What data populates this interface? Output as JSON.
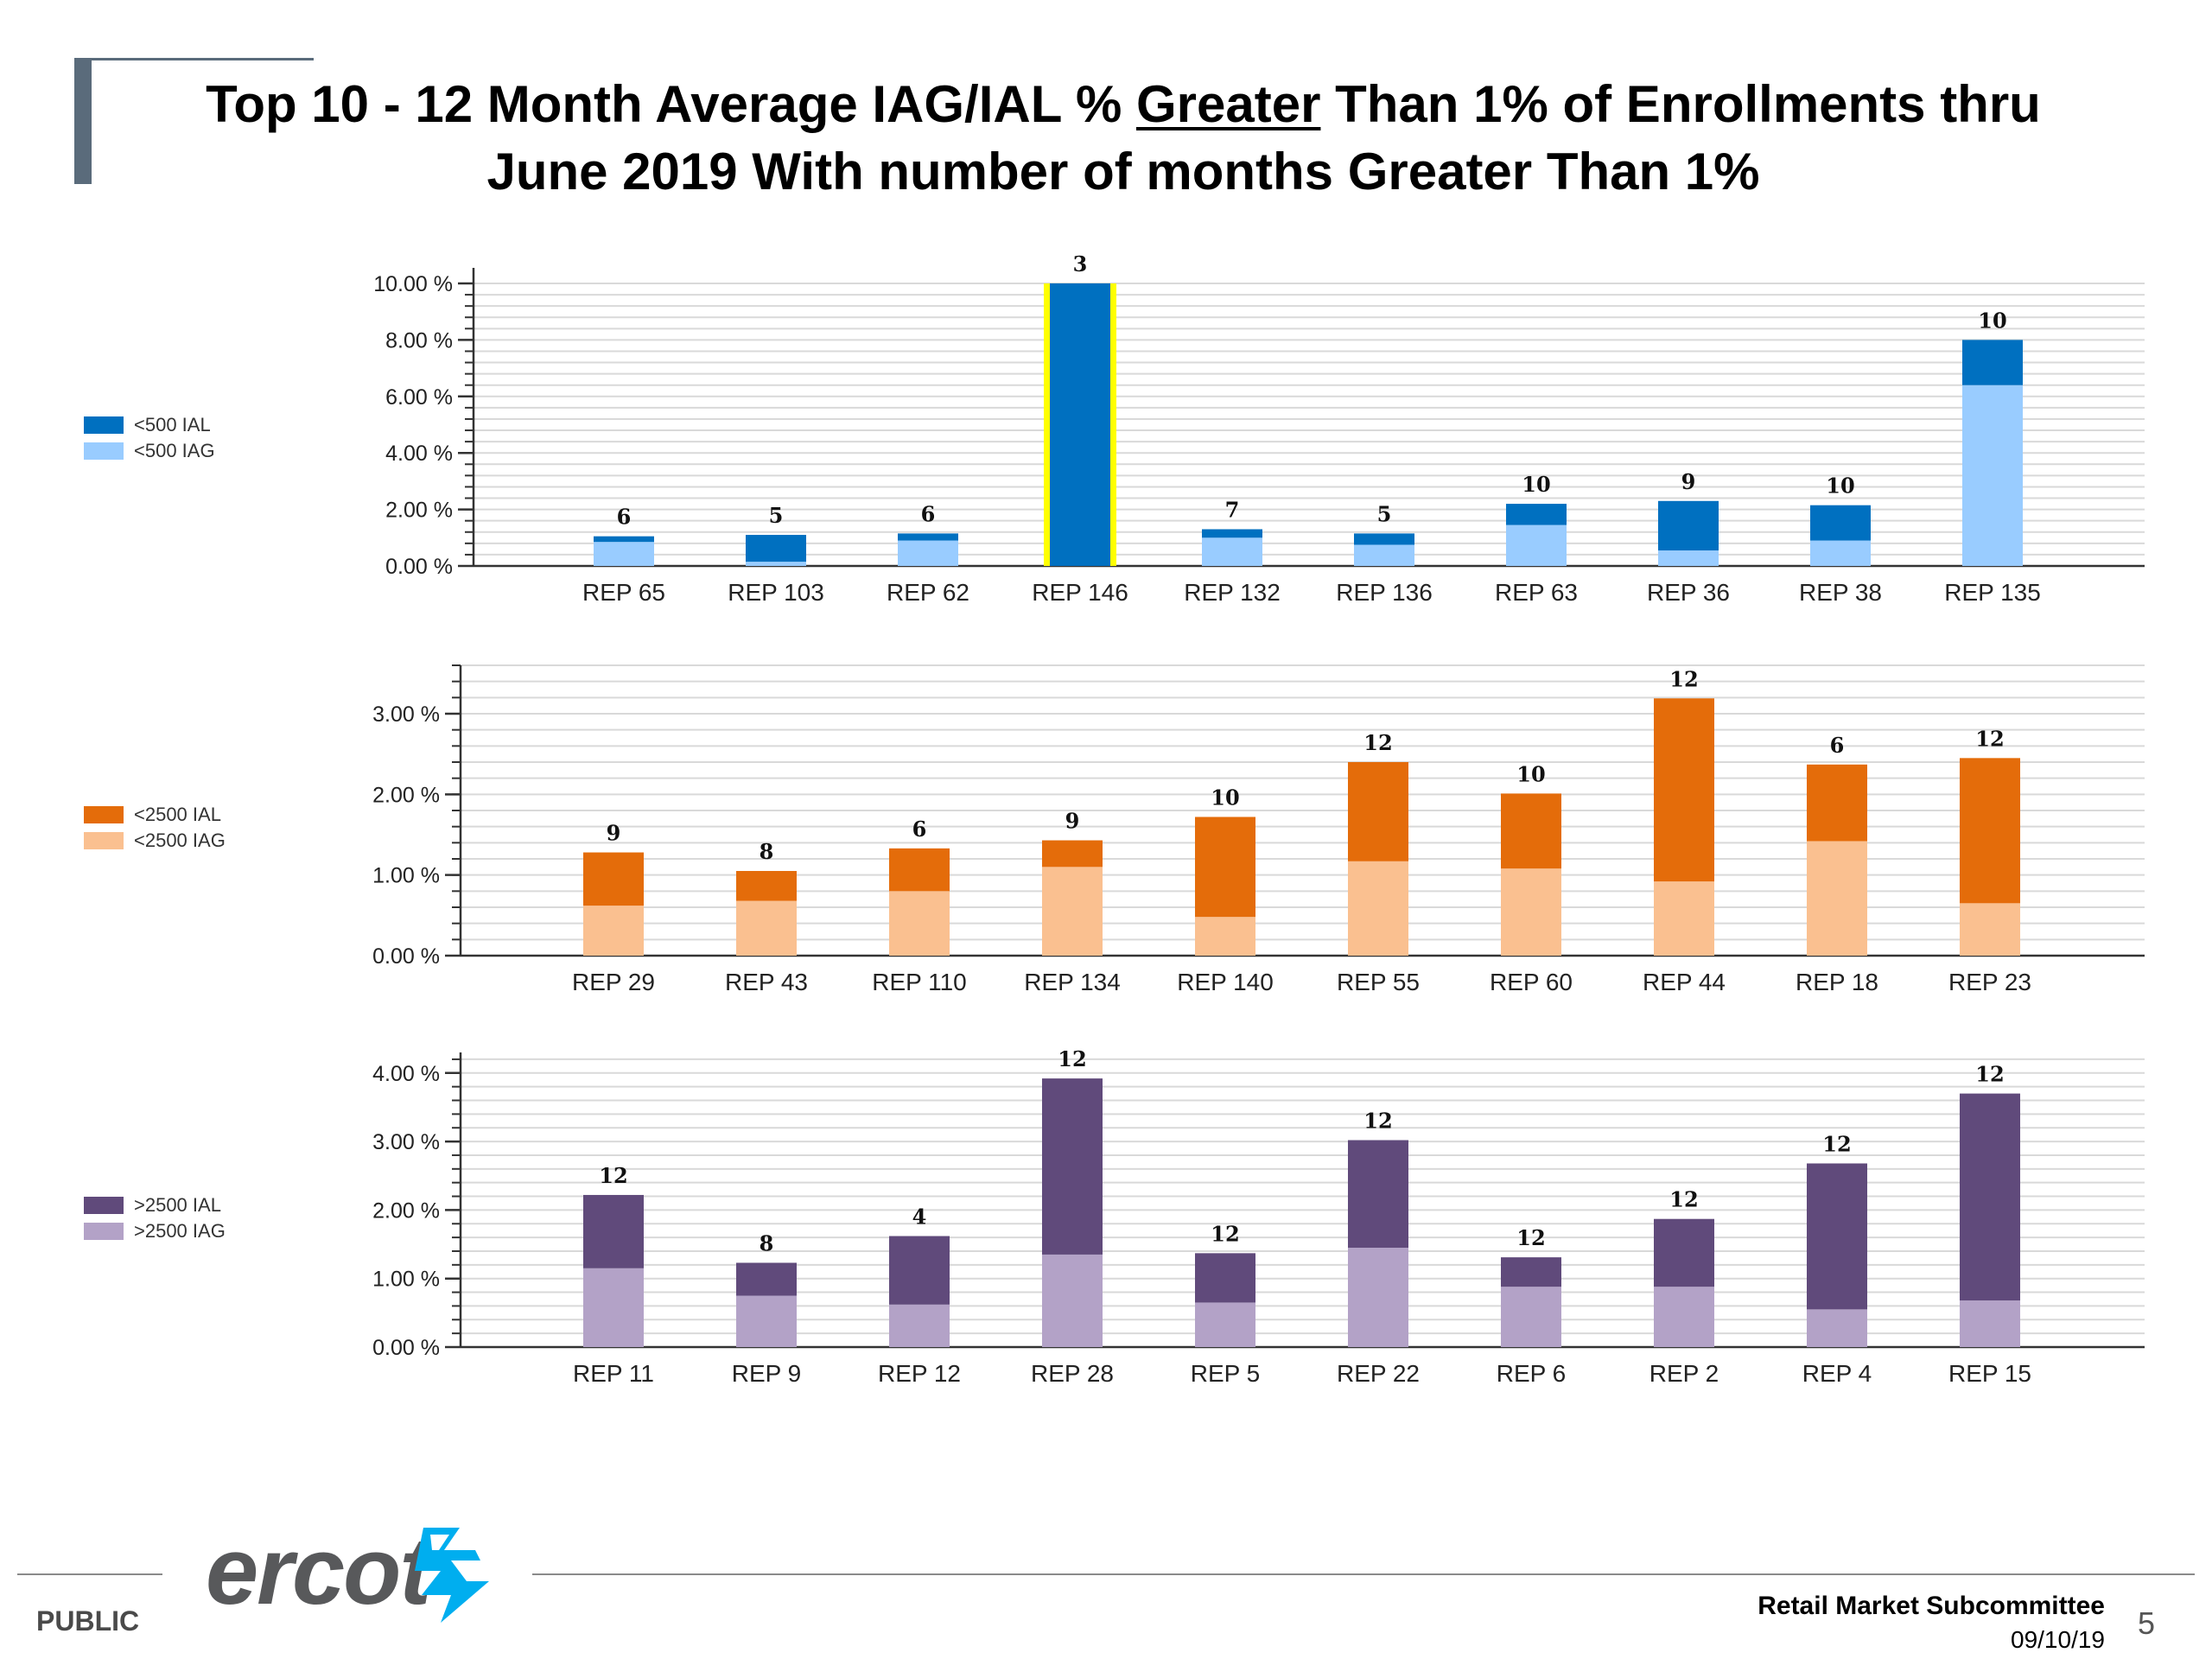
{
  "title": {
    "pre": "Top 10 - 12 Month Average IAG/IAL % ",
    "underlined": "Greater",
    "post": " Than 1% of Enrollments thru",
    "line2": "June 2019 With number of months Greater Than 1%"
  },
  "footer": {
    "public": "PUBLIC",
    "logo": "ercot",
    "committee": "Retail Market Subcommittee",
    "date": "09/10/19",
    "page": "5"
  },
  "colors": {
    "lt500_ial": "#0070c0",
    "lt500_iag": "#99ccff",
    "lt2500_ial": "#e46c0a",
    "lt2500_iag": "#fac090",
    "gt2500_ial": "#604a7b",
    "gt2500_iag": "#b3a2c7",
    "highlight": "#ffff00"
  },
  "chart_data": [
    {
      "type": "bar",
      "stacked": true,
      "legend": [
        "<500 IAL",
        "<500 IAG"
      ],
      "categories": [
        "REP 65",
        "REP 103",
        "REP 62",
        "REP 146",
        "REP 132",
        "REP 136",
        "REP 63",
        "REP 36",
        "REP 38",
        "REP 135"
      ],
      "series": [
        {
          "name": "<500 IAG",
          "values": [
            0.85,
            0.15,
            0.9,
            0,
            1.0,
            0.75,
            1.45,
            0.55,
            0.9,
            6.4
          ]
        },
        {
          "name": "<500 IAL",
          "values": [
            0.2,
            0.95,
            0.25,
            10.0,
            0.3,
            0.4,
            0.75,
            1.75,
            1.25,
            1.6
          ]
        }
      ],
      "month_labels": [
        "6",
        "5",
        "6",
        "3",
        "7",
        "5",
        "10",
        "9",
        "10",
        "10"
      ],
      "highlighted_category": "REP 146",
      "yticks": [
        "0.00 %",
        "2.00 %",
        "4.00 %",
        "6.00 %",
        "8.00 %",
        "10.00 %"
      ],
      "ylim": [
        0,
        10
      ],
      "grid": true
    },
    {
      "type": "bar",
      "stacked": true,
      "legend": [
        "<2500 IAL",
        "<2500 IAG"
      ],
      "categories": [
        "REP 29",
        "REP 43",
        "REP 110",
        "REP 134",
        "REP 140",
        "REP 55",
        "REP 60",
        "REP 44",
        "REP 18",
        "REP 23"
      ],
      "series": [
        {
          "name": "<2500 IAG",
          "values": [
            0.62,
            0.68,
            0.8,
            1.1,
            0.48,
            1.17,
            1.08,
            0.92,
            1.42,
            0.65
          ]
        },
        {
          "name": "<2500 IAL",
          "values": [
            0.66,
            0.37,
            0.53,
            0.33,
            1.24,
            1.23,
            0.93,
            2.27,
            0.95,
            1.8
          ]
        }
      ],
      "month_labels": [
        "9",
        "8",
        "6",
        "9",
        "10",
        "12",
        "10",
        "12",
        "6",
        "12"
      ],
      "yticks": [
        "0.00 %",
        "1.00 %",
        "2.00 %",
        "3.00 %"
      ],
      "ylim": [
        0,
        3.6
      ],
      "grid": true
    },
    {
      "type": "bar",
      "stacked": true,
      "legend": [
        ">2500 IAL",
        ">2500 IAG"
      ],
      "categories": [
        "REP 11",
        "REP 9",
        "REP 12",
        "REP 28",
        "REP 5",
        "REP 22",
        "REP 6",
        "REP 2",
        "REP 4",
        "REP 15"
      ],
      "series": [
        {
          "name": ">2500 IAG",
          "values": [
            1.15,
            0.75,
            0.62,
            1.35,
            0.65,
            1.45,
            0.88,
            0.88,
            0.55,
            0.68
          ]
        },
        {
          "name": ">2500 IAL",
          "values": [
            1.07,
            0.48,
            1.0,
            2.57,
            0.72,
            1.57,
            0.43,
            0.99,
            2.13,
            3.02
          ]
        }
      ],
      "month_labels": [
        "12",
        "8",
        "4",
        "12",
        "12",
        "12",
        "12",
        "12",
        "12",
        "12"
      ],
      "yticks": [
        "0.00 %",
        "1.00 %",
        "2.00 %",
        "3.00 %",
        "4.00 %"
      ],
      "ylim": [
        0,
        4.3
      ],
      "grid": true
    }
  ]
}
